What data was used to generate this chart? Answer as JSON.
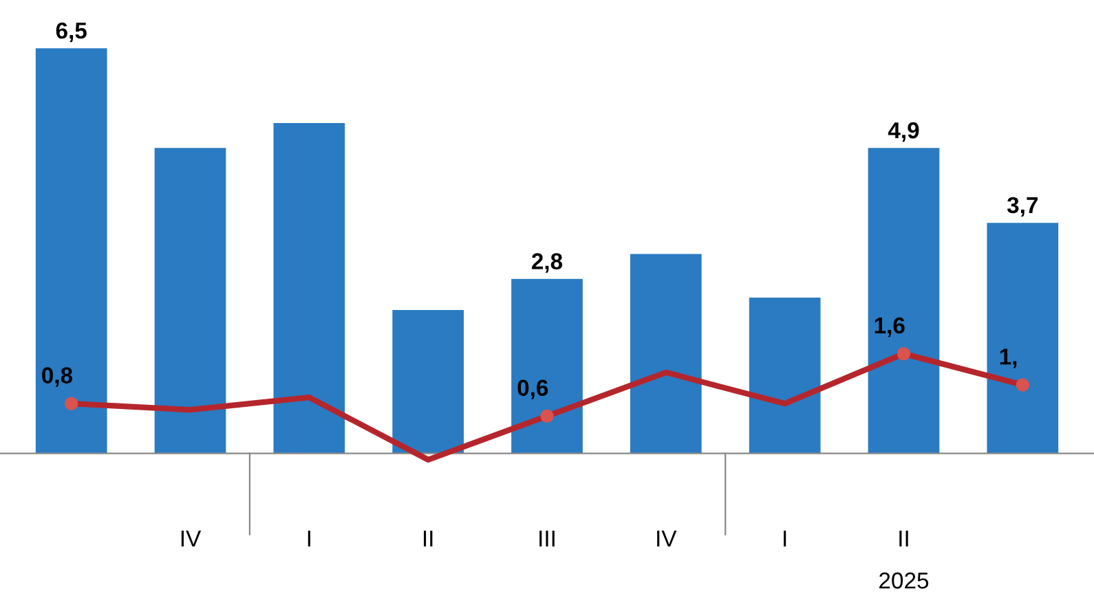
{
  "chart_data": {
    "type": "bar",
    "categories": [
      null,
      "IV",
      "I",
      "II",
      "III",
      "IV",
      "I",
      "II",
      null
    ],
    "series": [
      {
        "color": "#2a7bc2",
        "values": [
          6.5,
          4.9,
          5.3,
          2.3,
          2.8,
          3.2,
          2.5,
          4.9,
          3.7
        ],
        "value_labels": [
          "6,5",
          null,
          null,
          null,
          "2,8",
          null,
          null,
          "4,9",
          "3,7"
        ]
      },
      {
        "type": "line",
        "color": "#b5262c",
        "values": [
          0.8,
          0.7,
          0.9,
          -0.1,
          0.6,
          1.3,
          0.8,
          1.6,
          1.1
        ],
        "value_labels": [
          "0,8",
          null,
          null,
          null,
          "0,6",
          null,
          null,
          "1,6",
          "1,"
        ]
      }
    ],
    "annotations": [
      "2025"
    ],
    "legend": false,
    "grid": false
  }
}
